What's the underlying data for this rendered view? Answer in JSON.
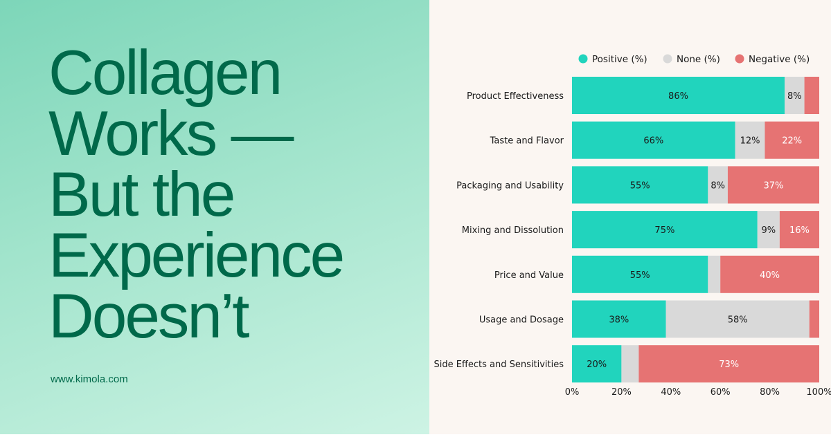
{
  "headline": {
    "lines": [
      "Collagen",
      "Works —",
      "But the",
      "Experience",
      "Doesn’t"
    ]
  },
  "site_url": "www.kimola.com",
  "colors": {
    "positive": "#21d4bd",
    "none": "#d9d9d9",
    "negative": "#e67373",
    "headline": "#00694a"
  },
  "chart_data": {
    "type": "bar",
    "orientation": "horizontal",
    "stacked": true,
    "title": "",
    "xlabel": "",
    "ylabel": "",
    "xlim": [
      0,
      100
    ],
    "x_ticks": [
      "0%",
      "20%",
      "40%",
      "60%",
      "80%",
      "100%"
    ],
    "legend_position": "top",
    "grid": false,
    "categories": [
      "Product Effectiveness",
      "Taste and Flavor",
      "Packaging and Usability",
      "Mixing and Dissolution",
      "Price and Value",
      "Usage and Dosage",
      "Side Effects and Sensitivities"
    ],
    "series": [
      {
        "name": "Positive (%)",
        "values": [
          86,
          66,
          55,
          75,
          55,
          38,
          20
        ],
        "labels": [
          "86%",
          "66%",
          "55%",
          "75%",
          "55%",
          "38%",
          "20%"
        ]
      },
      {
        "name": "None (%)",
        "values": [
          8,
          12,
          8,
          9,
          5,
          58,
          7
        ],
        "labels": [
          "8%",
          "12%",
          "8%",
          "9%",
          "",
          "58%",
          ""
        ]
      },
      {
        "name": "Negative (%)",
        "values": [
          6,
          22,
          37,
          16,
          40,
          4,
          73
        ],
        "labels": [
          "",
          "22%",
          "37%",
          "16%",
          "40%",
          "",
          "73%"
        ]
      }
    ]
  }
}
